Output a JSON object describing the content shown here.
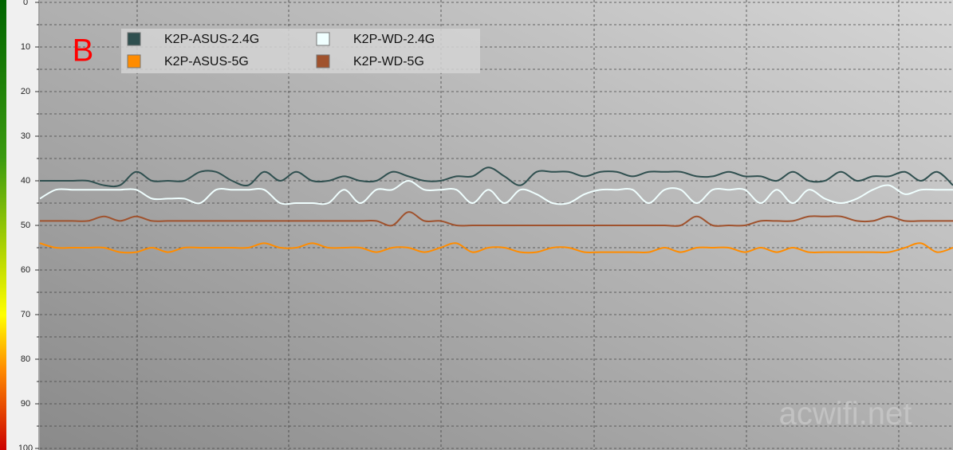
{
  "chart_data": {
    "type": "line",
    "annotation": "B",
    "watermark": "acwifi.net",
    "ylim": [
      0,
      100
    ],
    "inverted": true,
    "yticks": [
      0,
      10,
      20,
      30,
      40,
      50,
      60,
      70,
      80,
      90,
      100
    ],
    "minor_yticks": [
      5,
      15,
      25,
      35,
      45,
      55,
      65,
      75,
      85,
      95
    ],
    "grid": true,
    "series": [
      {
        "name": "K2P-ASUS-2.4G",
        "color": "#2f4f4f",
        "values": [
          40,
          40,
          40,
          40,
          41,
          41,
          38,
          40,
          40,
          40,
          38,
          38,
          40,
          41,
          38,
          40,
          38,
          40,
          40,
          39,
          40,
          40,
          38,
          39,
          40,
          40,
          39,
          39,
          37,
          39,
          41,
          38,
          38,
          38,
          39,
          38,
          38,
          39,
          38,
          38,
          38,
          39,
          39,
          38,
          39,
          39,
          40,
          38,
          40,
          40,
          38,
          40,
          39,
          39,
          38,
          40,
          38,
          41
        ]
      },
      {
        "name": "K2P-WD-2.4G",
        "color": "#f0ffff",
        "values": [
          44,
          42,
          42,
          42,
          42,
          42,
          42,
          44,
          44,
          44,
          45,
          42,
          42,
          42,
          42,
          45,
          45,
          45,
          45,
          42,
          45,
          42,
          42,
          40,
          42,
          42,
          42,
          45,
          42,
          45,
          42,
          43,
          45,
          45,
          43,
          42,
          42,
          42,
          45,
          42,
          42,
          45,
          42,
          42,
          42,
          45,
          42,
          45,
          42,
          44,
          45,
          44,
          42,
          41,
          43,
          42,
          42,
          42
        ]
      },
      {
        "name": "K2P-ASUS-5G",
        "color": "#ff8c00",
        "values": [
          54,
          55,
          55,
          55,
          55,
          56,
          56,
          55,
          56,
          55,
          55,
          55,
          55,
          55,
          54,
          55,
          55,
          54,
          55,
          55,
          55,
          56,
          55,
          55,
          56,
          55,
          54,
          56,
          55,
          55,
          56,
          56,
          55,
          55,
          56,
          56,
          56,
          56,
          56,
          55,
          56,
          55,
          55,
          55,
          56,
          55,
          56,
          55,
          56,
          56,
          56,
          56,
          56,
          56,
          55,
          54,
          56,
          55
        ]
      },
      {
        "name": "K2P-WD-5G",
        "color": "#a0522d",
        "values": [
          49,
          49,
          49,
          49,
          48,
          49,
          48,
          49,
          49,
          49,
          49,
          49,
          49,
          49,
          49,
          49,
          49,
          49,
          49,
          49,
          49,
          49,
          50,
          47,
          49,
          49,
          50,
          50,
          50,
          50,
          50,
          50,
          50,
          50,
          50,
          50,
          50,
          50,
          50,
          50,
          50,
          48,
          50,
          50,
          50,
          49,
          49,
          49,
          48,
          48,
          48,
          49,
          49,
          48,
          49,
          49,
          49,
          49
        ]
      }
    ]
  }
}
